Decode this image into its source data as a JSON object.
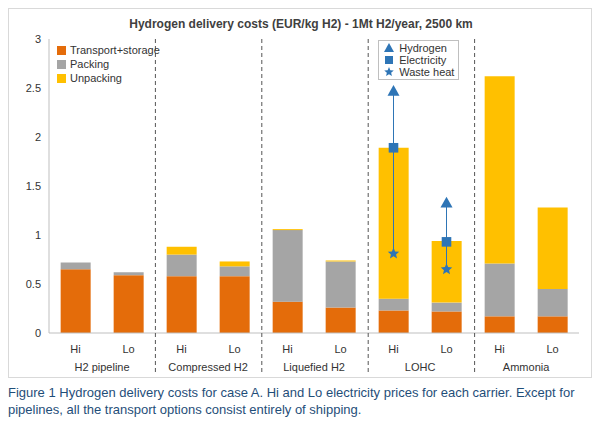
{
  "chart_data": {
    "type": "bar",
    "title": "Hydrogen delivery costs (EUR/kg H2) - 1Mt H2/year, 2500 km",
    "caption": "Figure 1 Hydrogen delivery costs for case A. Hi and Lo electricity prices for each carrier. Except for pipelines, all the transport options consist entirely of shipping.",
    "categories": [
      "Hi",
      "Lo",
      "Hi",
      "Lo",
      "Hi",
      "Lo",
      "Hi",
      "Lo",
      "Hi",
      "Lo"
    ],
    "groups": [
      "H2 pipeline",
      "Compressed H2",
      "Liquefied H2",
      "LOHC",
      "Ammonia"
    ],
    "stacked": true,
    "grid": false,
    "legend": "upper left",
    "ylim": [
      0,
      3
    ],
    "yticks": [
      0,
      0.5,
      1,
      1.5,
      2,
      2.5,
      3
    ],
    "series": [
      {
        "name": "Transport+storage",
        "type": "bar",
        "color": "#e46c0a",
        "values": [
          0.65,
          0.59,
          0.58,
          0.58,
          0.32,
          0.26,
          0.23,
          0.22,
          0.17,
          0.17
        ]
      },
      {
        "name": "Packing",
        "type": "bar",
        "color": "#a5a5a5",
        "values": [
          0.07,
          0.03,
          0.22,
          0.1,
          0.73,
          0.47,
          0.12,
          0.09,
          0.54,
          0.28
        ]
      },
      {
        "name": "Unpacking",
        "type": "bar",
        "color": "#ffc000",
        "values": [
          0,
          0,
          0.08,
          0.05,
          0.01,
          0.01,
          1.54,
          0.63,
          1.91,
          0.83
        ]
      },
      {
        "name": "Hydrogen",
        "type": "scatter",
        "marker": "triangle",
        "color": "#2e75b6",
        "values": [
          null,
          null,
          null,
          null,
          null,
          null,
          2.47,
          1.33,
          null,
          null
        ]
      },
      {
        "name": "Electricity",
        "type": "scatter",
        "marker": "square",
        "color": "#2e75b6",
        "values": [
          null,
          null,
          null,
          null,
          null,
          null,
          1.89,
          0.93,
          null,
          null
        ]
      },
      {
        "name": "Waste heat",
        "type": "scatter",
        "marker": "star",
        "color": "#2e75b6",
        "values": [
          null,
          null,
          null,
          null,
          null,
          null,
          0.81,
          0.65,
          null,
          null
        ]
      }
    ]
  }
}
